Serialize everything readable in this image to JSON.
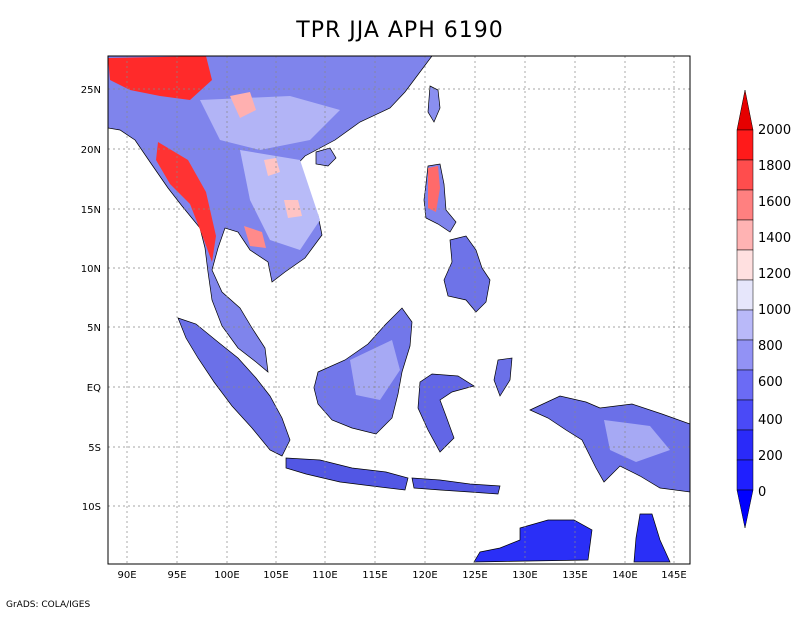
{
  "title": "TPR JJA APH 6190",
  "credit": "GrADS: COLA/IGES",
  "axes": {
    "lon_ticks": [
      "90E",
      "95E",
      "100E",
      "105E",
      "110E",
      "115E",
      "120E",
      "125E",
      "130E",
      "135E",
      "140E",
      "145E"
    ],
    "lat_ticks": [
      "25N",
      "20N",
      "15N",
      "10N",
      "5N",
      "EQ",
      "5S",
      "10S"
    ],
    "lon_range": [
      88,
      146
    ],
    "lat_range": [
      -15,
      28
    ],
    "grid": true
  },
  "colorbar": {
    "levels": [
      "0",
      "200",
      "400",
      "600",
      "800",
      "1000",
      "1200",
      "1400",
      "1600",
      "1800",
      "2000"
    ],
    "colors": [
      "#1f1fff",
      "#4a4af7",
      "#6b6bf5",
      "#9292f5",
      "#b9b9f9",
      "#e6e6fb",
      "#ffe0e0",
      "#ffb3b3",
      "#ff8080",
      "#ff4d4d",
      "#ff1a1a",
      "#e60000"
    ]
  }
}
